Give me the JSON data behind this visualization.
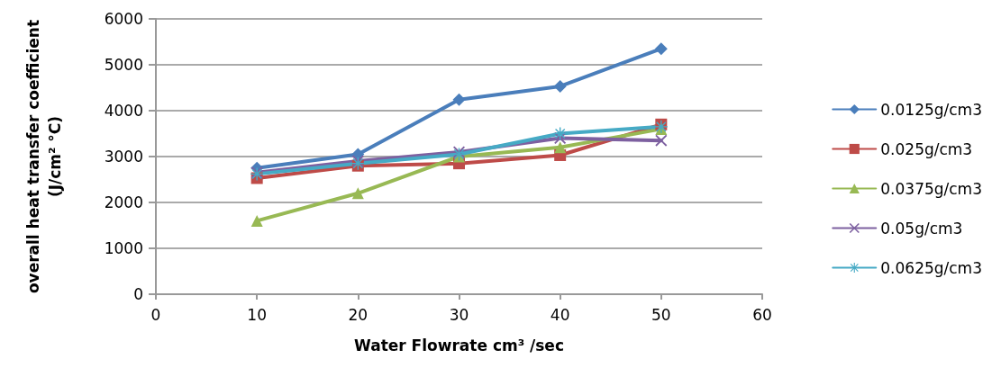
{
  "chart_data": {
    "type": "line",
    "xlabel": "Water Flowrate cm³ /sec",
    "ylabel": "overall heat transfer coefficient\n(J/cm² °C)",
    "x": [
      10,
      20,
      30,
      40,
      50
    ],
    "xlim": [
      0,
      60
    ],
    "xticks": [
      0,
      10,
      20,
      30,
      40,
      50,
      60
    ],
    "ylim": [
      0,
      6000
    ],
    "yticks": [
      0,
      1000,
      2000,
      3000,
      4000,
      5000,
      6000
    ],
    "grid": "y",
    "legend": "right",
    "line_style": "solid",
    "series": [
      {
        "name": "0.0125g/cm3",
        "color": "#4a7ebb",
        "marker": "diamond",
        "values": [
          2750,
          3050,
          4240,
          4530,
          5350
        ]
      },
      {
        "name": "0.025g/cm3",
        "color": "#be4b48",
        "marker": "square",
        "values": [
          2530,
          2800,
          2850,
          3030,
          3700
        ]
      },
      {
        "name": "0.0375g/cm3",
        "color": "#98b954",
        "marker": "triangle",
        "values": [
          1600,
          2200,
          3000,
          3200,
          3600
        ]
      },
      {
        "name": "0.05g/cm3",
        "color": "#7d60a0",
        "marker": "cross",
        "values": [
          2650,
          2900,
          3100,
          3400,
          3350
        ]
      },
      {
        "name": "0.0625g/cm3",
        "color": "#46aac5",
        "marker": "star",
        "values": [
          2620,
          2850,
          3050,
          3500,
          3650
        ]
      }
    ]
  }
}
